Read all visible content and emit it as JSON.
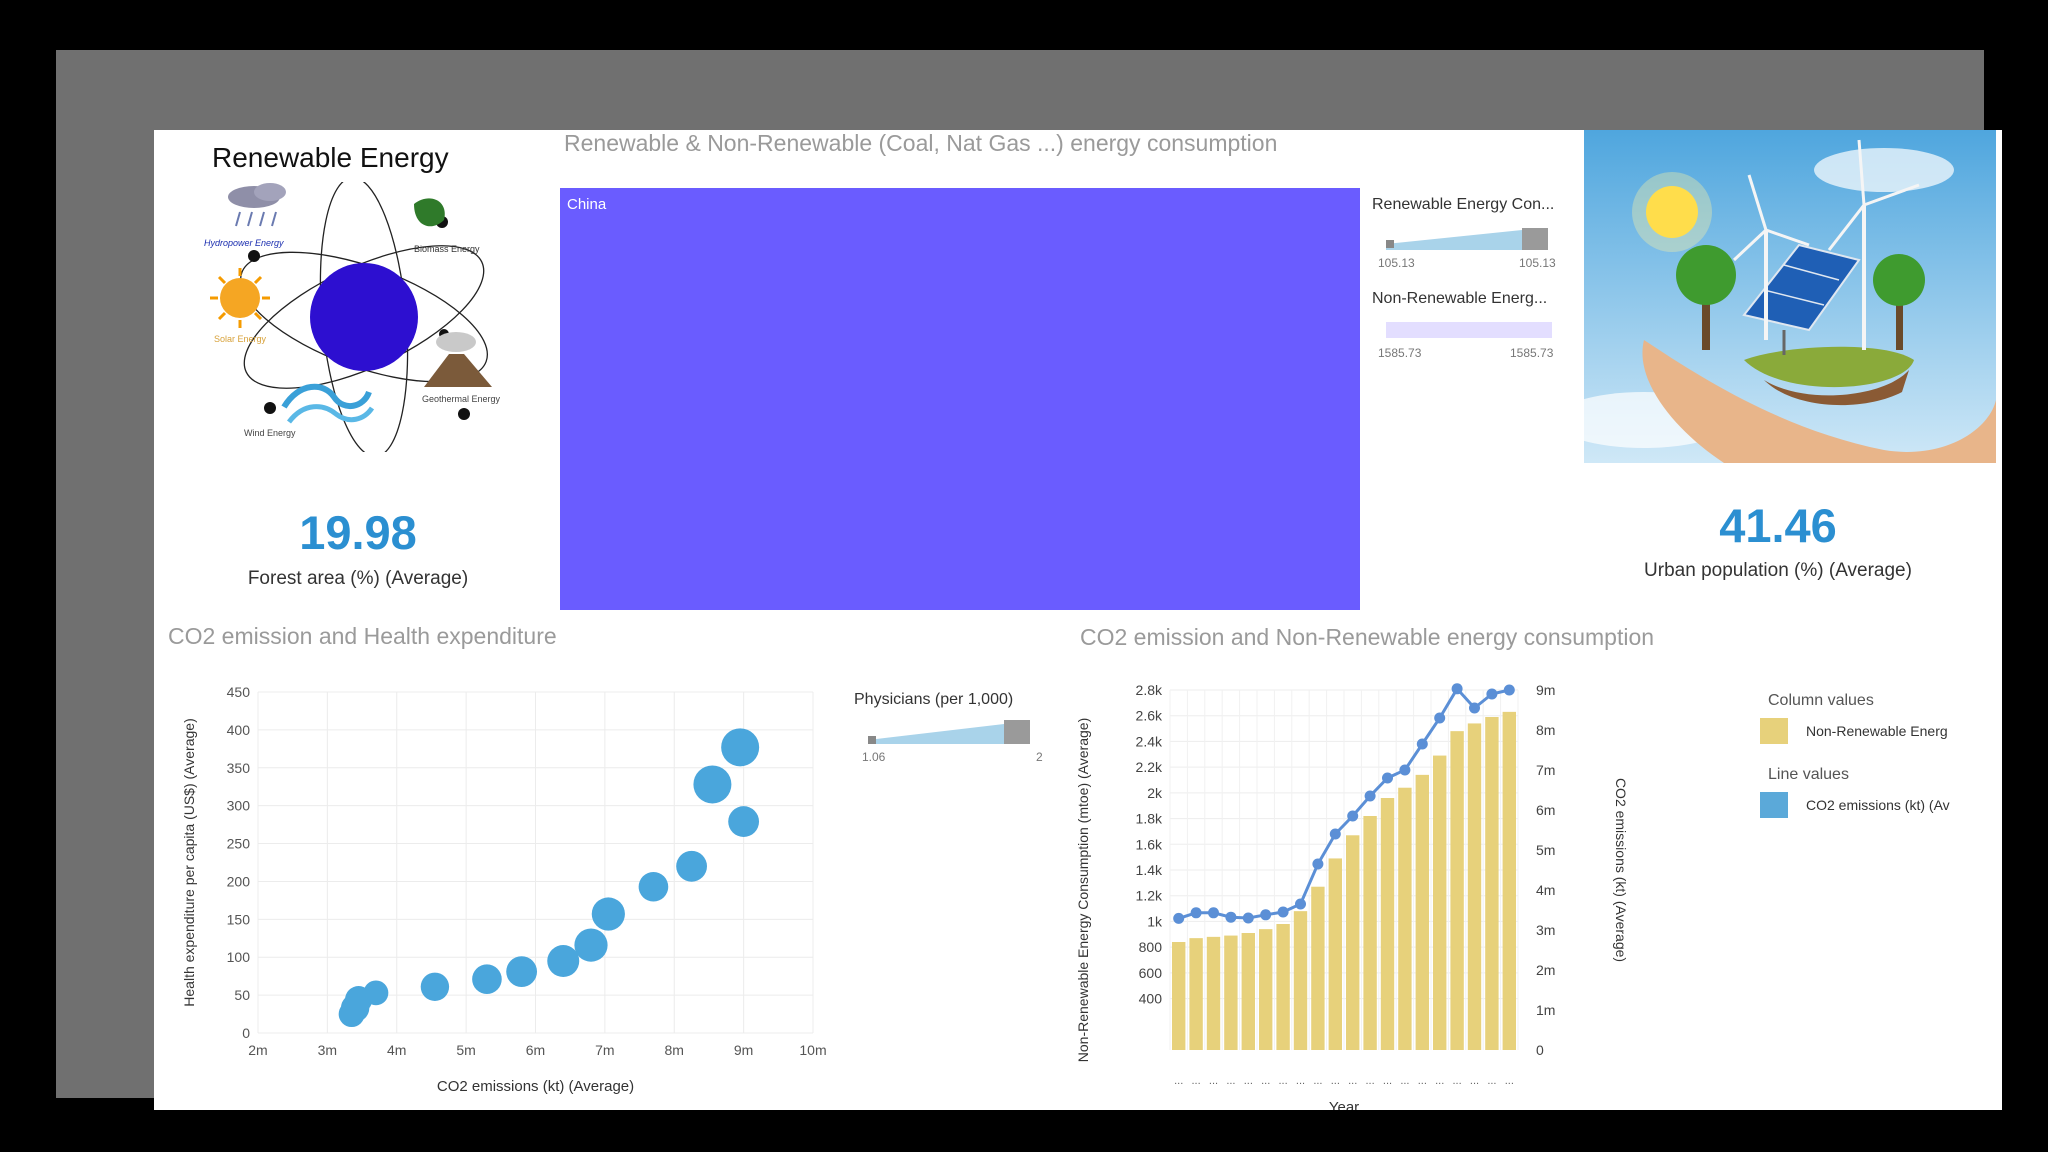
{
  "renewable_panel": {
    "title": "Renewable Energy",
    "diagram_labels": [
      "Hydropower Energy",
      "Biomass Energy",
      "Solar Energy",
      "Geothermal Energy",
      "Wind Energy"
    ],
    "kpi_value": "19.98",
    "kpi_label": "Forest area (%) (Average)"
  },
  "treemap_panel": {
    "title": "Renewable & Non-Renewable (Coal, Nat Gas ...) energy consumption",
    "tile_label": "China",
    "tile_color": "#6a5cff",
    "slicer1": {
      "label": "Renewable Energy Con...",
      "min": "105.13",
      "max": "105.13"
    },
    "slicer2": {
      "label": "Non-Renewable Energ...",
      "min": "1585.73",
      "max": "1585.73"
    }
  },
  "urban_panel": {
    "kpi_value": "41.46",
    "kpi_label": "Urban population (%) (Average)"
  },
  "scatter_panel": {
    "title": "CO2 emission and Health expenditure",
    "slicer": {
      "label": "Physicians (per 1,000)",
      "min": "1.06",
      "max": "2"
    }
  },
  "combo_panel": {
    "title": "CO2 emission and Non-Renewable energy consumption",
    "legend_column_header": "Column values",
    "legend_column_item": "Non-Renewable Energ",
    "legend_line_header": "Line values",
    "legend_line_item": "CO2 emissions (kt) (Av"
  },
  "colors": {
    "accent_blue": "#2b8fd1",
    "bubble": "#4aa6dc",
    "bar": "#e7d17b",
    "line": "#5b8fd6"
  },
  "chart_data": [
    {
      "type": "scatter",
      "xlabel": "CO2 emissions (kt) (Average)",
      "ylabel": "Health expenditure per capita (US$) (Average)",
      "xlim": [
        2000000,
        10000000
      ],
      "ylim": [
        0,
        450
      ],
      "x_ticks": [
        "2m",
        "3m",
        "4m",
        "5m",
        "6m",
        "7m",
        "8m",
        "9m",
        "10m"
      ],
      "y_ticks": [
        "0",
        "50",
        "100",
        "150",
        "200",
        "250",
        "300",
        "350",
        "400",
        "450"
      ],
      "points": [
        {
          "x": 3350000,
          "y": 25,
          "size": 1
        },
        {
          "x": 3400000,
          "y": 33,
          "size": 1.2
        },
        {
          "x": 3450000,
          "y": 44,
          "size": 1.1
        },
        {
          "x": 3700000,
          "y": 53,
          "size": 0.9
        },
        {
          "x": 4550000,
          "y": 61,
          "size": 1.2
        },
        {
          "x": 5300000,
          "y": 71,
          "size": 1.3
        },
        {
          "x": 5800000,
          "y": 81,
          "size": 1.4
        },
        {
          "x": 6400000,
          "y": 95,
          "size": 1.5
        },
        {
          "x": 6800000,
          "y": 116,
          "size": 1.6
        },
        {
          "x": 7050000,
          "y": 157,
          "size": 1.6
        },
        {
          "x": 7700000,
          "y": 193,
          "size": 1.3
        },
        {
          "x": 8250000,
          "y": 220,
          "size": 1.4
        },
        {
          "x": 8550000,
          "y": 328,
          "size": 2.0
        },
        {
          "x": 8950000,
          "y": 377,
          "size": 2.0
        },
        {
          "x": 9000000,
          "y": 279,
          "size": 1.4
        }
      ]
    },
    {
      "type": "bar+line",
      "xlabel": "Year",
      "ylabel": "Non-Renewable Energy Consumption (mtoe) (Average)",
      "y2label": "CO2 emissions (kt) (Average)",
      "categories": [
        "...",
        "...",
        "...",
        "...",
        "...",
        "...",
        "...",
        "...",
        "...",
        "...",
        "...",
        "...",
        "...",
        "...",
        "...",
        "...",
        "...",
        "...",
        "...",
        "..."
      ],
      "ylim": [
        0,
        2800
      ],
      "y_ticks": [
        "400",
        "600",
        "800",
        "1k",
        "1.2k",
        "1.4k",
        "1.6k",
        "1.8k",
        "2k",
        "2.2k",
        "2.4k",
        "2.6k",
        "2.8k"
      ],
      "y2lim": [
        0,
        9000000
      ],
      "y2_ticks": [
        "0",
        "1m",
        "2m",
        "3m",
        "4m",
        "5m",
        "6m",
        "7m",
        "8m",
        "9m"
      ],
      "series": [
        {
          "name": "Non-Renewable Energ",
          "kind": "column",
          "values": [
            840,
            870,
            880,
            890,
            910,
            940,
            980,
            1080,
            1270,
            1490,
            1670,
            1820,
            1960,
            2040,
            2140,
            2290,
            2480,
            2540,
            2590,
            2630
          ]
        },
        {
          "name": "CO2 emissions (kt) (Av",
          "kind": "line",
          "values": [
            3290000,
            3430000,
            3430000,
            3320000,
            3300000,
            3380000,
            3450000,
            3650000,
            4650000,
            5400000,
            5850000,
            6350000,
            6800000,
            7000000,
            7650000,
            8300000,
            9030000,
            8550000,
            8900000,
            9000000
          ]
        }
      ]
    }
  ]
}
